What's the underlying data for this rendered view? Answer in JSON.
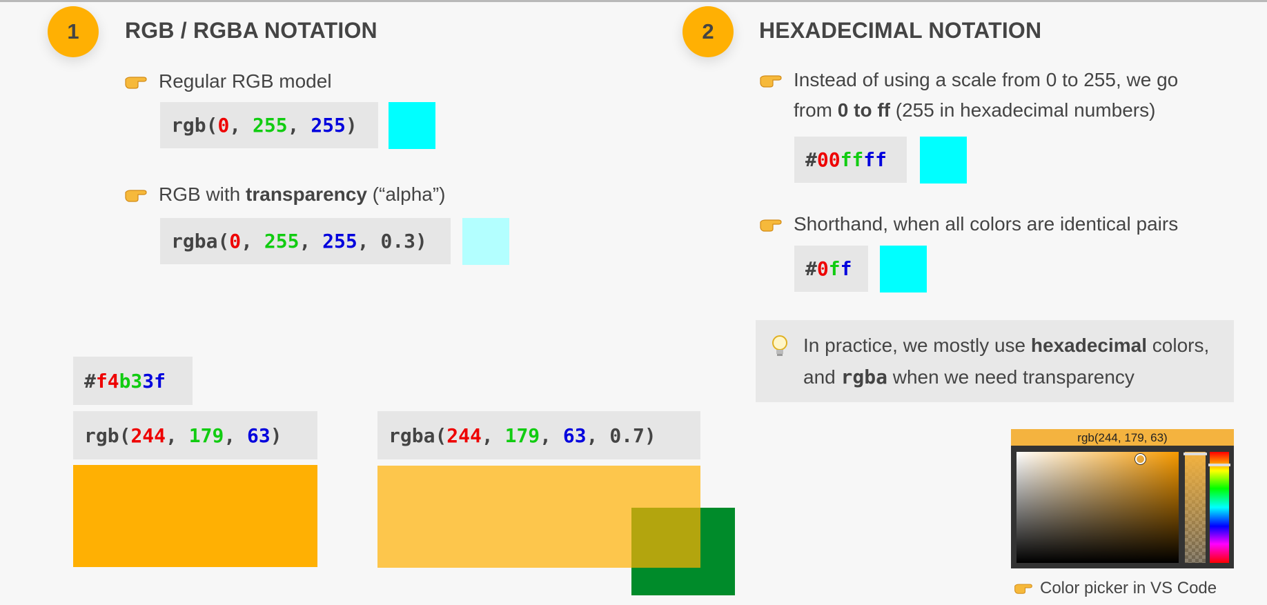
{
  "section1": {
    "number": "1",
    "title": "RGB / RGBA NOTATION",
    "bullet1": "Regular RGB model",
    "rgb_code": {
      "fn": "rgb",
      "r": "0",
      "g": "255",
      "b": "255"
    },
    "bullet2_pre": "RGB with ",
    "bullet2_bold": "transparency",
    "bullet2_post": " (“alpha”)",
    "rgba_code": {
      "fn": "rgba",
      "r": "0",
      "g": "255",
      "b": "255",
      "a": "0.3"
    }
  },
  "section2": {
    "number": "2",
    "title": "HEXADECIMAL NOTATION",
    "bullet1_pre": "Instead of using a scale from 0 to 255, we go from ",
    "bullet1_bold": "0 to ff",
    "bullet1_post": " (255 in hexadecimal numbers)",
    "hex_code": {
      "hash": "#",
      "r": "00",
      "g": "ff",
      "b": "ff"
    },
    "bullet2": "Shorthand, when all colors are identical pairs",
    "short_code": {
      "hash": "#",
      "r": "0",
      "g": "f",
      "b": "f"
    },
    "tip_pre": "In practice, we mostly use ",
    "tip_bold": "hexadecimal",
    "tip_mid": " colors, and ",
    "tip_mono": "rgba",
    "tip_post": " when we need transparency"
  },
  "examples": {
    "hex": {
      "hash": "#",
      "r": "f4",
      "g": "b3",
      "b": "3f"
    },
    "rgb": {
      "fn": "rgb",
      "r": "244",
      "g": "179",
      "b": "63"
    },
    "rgba": {
      "fn": "rgba",
      "r": "244",
      "g": "179",
      "b": "63",
      "a": "0.7"
    }
  },
  "picker": {
    "label": "rgb(244, 179, 63)",
    "caption": "Color picker in VS Code"
  },
  "colors": {
    "accent": "#ffb003",
    "cyan": "#00ffff",
    "cyan_alpha": "#b3ffff",
    "orange": "#f4b33f",
    "green": "#008b2a"
  }
}
